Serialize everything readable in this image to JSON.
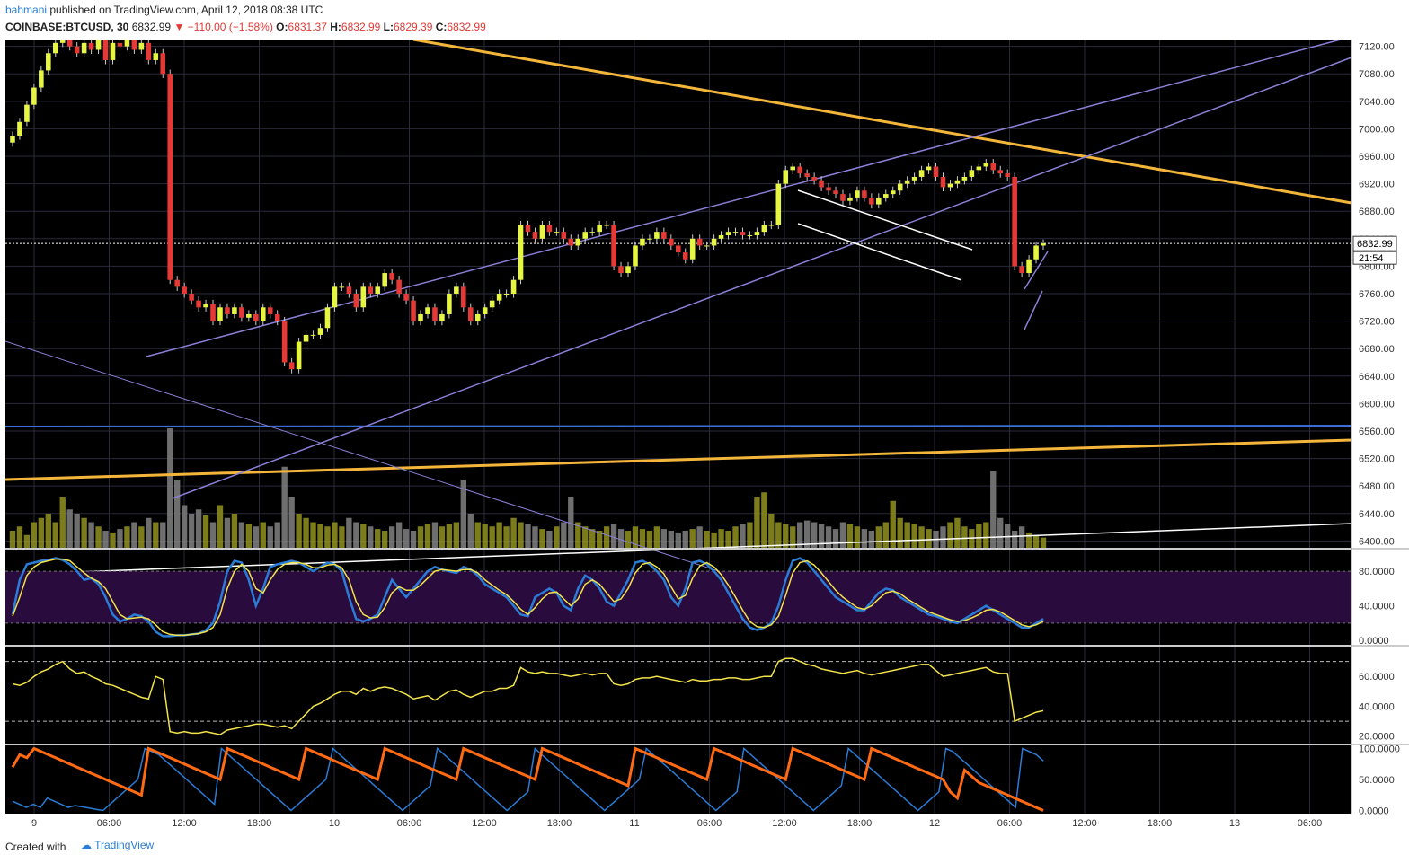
{
  "header": {
    "author": "bahmani",
    "published": "published on TradingView.com, April 12, 2018 08:38 UTC",
    "symbol": "COINBASE:BTCUSD, 30",
    "last": "6832.99",
    "change": "▼ −110.00 (−1.58%)",
    "open_label": "O:",
    "open": "6831.37",
    "high_label": "H:",
    "high": "6832.99",
    "low_label": "L:",
    "low": "6829.39",
    "close_label": "C:",
    "close": "6832.99"
  },
  "footer": {
    "created_with": "Created with",
    "brand": "TradingView"
  },
  "price_tag": {
    "value": "6832.99",
    "timer": "21:54"
  },
  "colors": {
    "background": "#000000",
    "grid": "#2a2a3a",
    "up": "#e6f542",
    "down": "#e53935",
    "channel": "#8a7fd6",
    "gold": "#f4b63a",
    "support": "#3b6fd6",
    "stoch_k": "#2a7cd6",
    "stoch_d": "#f2e34b",
    "rsi": "#f2e34b",
    "aroon_up": "#2a7cd6",
    "aroon_down": "#ff6a13"
  },
  "chart_data": {
    "type": "candlestick",
    "price_axis": [
      "7120.00",
      "7080.00",
      "7040.00",
      "7000.00",
      "6960.00",
      "6920.00",
      "6880.00",
      "6840.00",
      "6800.00",
      "6760.00",
      "6720.00",
      "6680.00",
      "6640.00",
      "6600.00",
      "6560.00",
      "6520.00",
      "6480.00",
      "6440.00",
      "6400.00"
    ],
    "ylim": [
      6390,
      7130
    ],
    "x_ticks": [
      "9",
      "06:00",
      "12:00",
      "18:00",
      "10",
      "06:00",
      "12:00",
      "18:00",
      "11",
      "06:00",
      "12:00",
      "18:00",
      "12",
      "06:00",
      "12:00",
      "18:00",
      "13",
      "06:00"
    ],
    "stoch_axis": [
      "80.0000",
      "40.0000",
      "0.0000"
    ],
    "rsi_axis": [
      "60.0000",
      "40.0000",
      "20.0000"
    ],
    "aroon_axis": [
      "100.0000",
      "50.0000",
      "0.0000"
    ],
    "candles_close": [
      6990,
      7010,
      7035,
      7060,
      7085,
      7110,
      7125,
      7130,
      7120,
      7110,
      7125,
      7115,
      7130,
      7100,
      7125,
      7120,
      7130,
      7115,
      7125,
      7100,
      7110,
      7080,
      6780,
      6770,
      6760,
      6750,
      6740,
      6745,
      6720,
      6740,
      6730,
      6740,
      6725,
      6730,
      6720,
      6740,
      6730,
      6720,
      6660,
      6650,
      6690,
      6700,
      6700,
      6710,
      6740,
      6770,
      6770,
      6760,
      6740,
      6770,
      6760,
      6770,
      6790,
      6780,
      6760,
      6750,
      6720,
      6730,
      6740,
      6720,
      6730,
      6760,
      6770,
      6740,
      6720,
      6730,
      6740,
      6750,
      6760,
      6760,
      6780,
      6860,
      6850,
      6840,
      6860,
      6850,
      6850,
      6840,
      6830,
      6840,
      6850,
      6850,
      6860,
      6860,
      6800,
      6790,
      6800,
      6830,
      6840,
      6840,
      6850,
      6840,
      6830,
      6820,
      6810,
      6840,
      6830,
      6830,
      6840,
      6845,
      6850,
      6850,
      6845,
      6845,
      6850,
      6860,
      6860,
      6920,
      6940,
      6945,
      6935,
      6930,
      6925,
      6915,
      6910,
      6905,
      6895,
      6900,
      6910,
      6900,
      6890,
      6900,
      6905,
      6910,
      6920,
      6925,
      6930,
      6940,
      6945,
      6930,
      6915,
      6920,
      6925,
      6930,
      6940,
      6945,
      6950,
      6940,
      6935,
      6930,
      6800,
      6790,
      6810,
      6830,
      6833
    ],
    "volume": [
      20,
      25,
      15,
      30,
      35,
      40,
      30,
      60,
      45,
      40,
      35,
      30,
      25,
      20,
      18,
      22,
      25,
      30,
      25,
      35,
      30,
      30,
      140,
      80,
      50,
      40,
      45,
      38,
      30,
      50,
      35,
      40,
      30,
      28,
      25,
      30,
      25,
      30,
      95,
      60,
      40,
      35,
      30,
      28,
      25,
      30,
      25,
      35,
      30,
      28,
      25,
      22,
      20,
      25,
      30,
      22,
      20,
      25,
      28,
      30,
      25,
      28,
      30,
      80,
      40,
      30,
      28,
      25,
      30,
      25,
      35,
      30,
      28,
      25,
      22,
      20,
      25,
      30,
      60,
      30,
      25,
      22,
      20,
      25,
      28,
      22,
      20,
      25,
      22,
      20,
      25,
      22,
      20,
      18,
      20,
      22,
      25,
      20,
      18,
      22,
      20,
      25,
      28,
      30,
      60,
      65,
      40,
      30,
      28,
      25,
      30,
      32,
      30,
      28,
      25,
      22,
      30,
      28,
      25,
      22,
      20,
      25,
      30,
      55,
      35,
      30,
      28,
      25,
      22,
      20,
      25,
      30,
      35,
      25,
      22,
      28,
      30,
      90,
      35,
      28,
      20,
      25,
      18,
      15,
      12
    ],
    "stoch_k": [
      30,
      70,
      88,
      90,
      92,
      93,
      95,
      93,
      88,
      80,
      70,
      72,
      65,
      50,
      30,
      22,
      25,
      30,
      28,
      22,
      10,
      5,
      5,
      6,
      6,
      7,
      8,
      12,
      20,
      45,
      80,
      92,
      90,
      70,
      40,
      60,
      85,
      88,
      90,
      92,
      90,
      85,
      80,
      85,
      90,
      88,
      80,
      50,
      25,
      22,
      25,
      30,
      50,
      70,
      60,
      50,
      60,
      70,
      80,
      85,
      82,
      80,
      78,
      85,
      82,
      75,
      65,
      60,
      55,
      50,
      40,
      30,
      28,
      50,
      55,
      60,
      55,
      40,
      35,
      60,
      75,
      70,
      60,
      45,
      40,
      55,
      70,
      90,
      92,
      88,
      80,
      70,
      50,
      40,
      60,
      90,
      92,
      88,
      80,
      70,
      55,
      40,
      25,
      15,
      12,
      15,
      20,
      40,
      70,
      92,
      95,
      90,
      80,
      70,
      60,
      50,
      45,
      40,
      35,
      35,
      45,
      55,
      60,
      58,
      50,
      45,
      40,
      35,
      30,
      28,
      25,
      22,
      20,
      25,
      30,
      35,
      40,
      35,
      30,
      25,
      20,
      15,
      15,
      20,
      25
    ],
    "stoch_d": [
      28,
      50,
      75,
      85,
      90,
      92,
      94,
      94,
      92,
      85,
      78,
      72,
      68,
      60,
      45,
      30,
      25,
      26,
      27,
      25,
      18,
      10,
      7,
      6,
      6,
      7,
      8,
      10,
      15,
      30,
      60,
      80,
      88,
      80,
      60,
      55,
      70,
      82,
      88,
      90,
      90,
      88,
      84,
      84,
      87,
      88,
      84,
      70,
      45,
      30,
      26,
      27,
      38,
      55,
      62,
      58,
      58,
      64,
      72,
      80,
      82,
      81,
      80,
      82,
      82,
      78,
      70,
      64,
      58,
      53,
      45,
      36,
      30,
      38,
      48,
      55,
      56,
      48,
      40,
      48,
      65,
      70,
      65,
      55,
      45,
      48,
      60,
      78,
      88,
      90,
      85,
      77,
      62,
      48,
      52,
      72,
      86,
      90,
      85,
      76,
      64,
      50,
      35,
      22,
      16,
      15,
      18,
      28,
      52,
      78,
      90,
      92,
      87,
      78,
      68,
      58,
      50,
      44,
      38,
      36,
      40,
      48,
      55,
      57,
      54,
      48,
      43,
      38,
      33,
      30,
      27,
      24,
      22,
      23,
      26,
      30,
      35,
      36,
      33,
      28,
      23,
      18,
      16,
      18,
      22
    ],
    "rsi": [
      55,
      54,
      56,
      60,
      63,
      65,
      68,
      70,
      65,
      62,
      63,
      60,
      58,
      55,
      54,
      52,
      50,
      48,
      46,
      45,
      60,
      58,
      23,
      22,
      23,
      22,
      22,
      23,
      22,
      21,
      24,
      25,
      26,
      27,
      28,
      28,
      27,
      26,
      27,
      25,
      30,
      35,
      40,
      42,
      45,
      48,
      50,
      50,
      48,
      52,
      50,
      52,
      53,
      52,
      50,
      48,
      45,
      46,
      47,
      44,
      47,
      50,
      51,
      48,
      46,
      48,
      50,
      50,
      52,
      52,
      54,
      66,
      63,
      62,
      63,
      62,
      62,
      61,
      60,
      61,
      62,
      61,
      62,
      62,
      55,
      54,
      55,
      58,
      59,
      59,
      60,
      59,
      58,
      57,
      56,
      58,
      57,
      57,
      58,
      58,
      59,
      59,
      58,
      58,
      59,
      60,
      60,
      70,
      72,
      72,
      70,
      68,
      67,
      65,
      64,
      63,
      62,
      63,
      64,
      62,
      61,
      62,
      63,
      64,
      65,
      66,
      67,
      68,
      68,
      64,
      60,
      61,
      62,
      63,
      64,
      65,
      66,
      63,
      62,
      62,
      30,
      32,
      34,
      36,
      37
    ],
    "aroon_up": [
      15,
      10,
      5,
      10,
      5,
      20,
      15,
      10,
      5,
      8,
      6,
      4,
      2,
      0,
      10,
      20,
      30,
      40,
      50,
      100,
      95,
      90,
      80,
      70,
      60,
      50,
      40,
      30,
      20,
      10,
      100,
      90,
      80,
      70,
      60,
      50,
      40,
      30,
      20,
      10,
      0,
      10,
      20,
      30,
      40,
      50,
      100,
      90,
      80,
      70,
      60,
      50,
      40,
      30,
      20,
      10,
      0,
      10,
      20,
      30,
      40,
      100,
      90,
      80,
      70,
      60,
      50,
      40,
      30,
      20,
      10,
      0,
      10,
      20,
      30,
      100,
      90,
      80,
      70,
      60,
      50,
      40,
      30,
      20,
      10,
      0,
      10,
      20,
      30,
      40,
      50,
      100,
      90,
      80,
      70,
      60,
      50,
      40,
      30,
      20,
      10,
      0,
      10,
      20,
      30,
      100,
      90,
      80,
      70,
      60,
      50,
      40,
      30,
      20,
      10,
      0,
      10,
      20,
      30,
      40,
      100,
      90,
      80,
      70,
      60,
      50,
      40,
      30,
      20,
      10,
      0,
      10,
      20,
      30,
      100,
      95,
      85,
      75,
      65,
      55,
      45,
      35,
      25,
      15,
      5,
      100,
      95,
      90,
      80
    ],
    "aroon_down": [
      70,
      90,
      85,
      100,
      95,
      90,
      85,
      80,
      75,
      70,
      65,
      60,
      55,
      50,
      45,
      40,
      35,
      30,
      25,
      100,
      95,
      90,
      85,
      80,
      75,
      70,
      65,
      60,
      55,
      50,
      100,
      95,
      90,
      85,
      80,
      75,
      70,
      65,
      60,
      55,
      50,
      100,
      95,
      90,
      85,
      80,
      75,
      70,
      65,
      60,
      55,
      50,
      100,
      95,
      90,
      85,
      80,
      75,
      70,
      65,
      60,
      55,
      50,
      100,
      95,
      90,
      85,
      80,
      75,
      70,
      65,
      60,
      55,
      50,
      100,
      95,
      90,
      85,
      80,
      75,
      70,
      65,
      60,
      55,
      50,
      45,
      40,
      100,
      95,
      90,
      85,
      80,
      75,
      70,
      65,
      60,
      55,
      50,
      100,
      95,
      90,
      85,
      80,
      75,
      70,
      65,
      60,
      55,
      50,
      100,
      95,
      90,
      85,
      80,
      75,
      70,
      65,
      60,
      55,
      50,
      100,
      95,
      90,
      85,
      80,
      75,
      70,
      65,
      60,
      55,
      50,
      30,
      20,
      65,
      55,
      45,
      40,
      35,
      30,
      25,
      20,
      15,
      10,
      5,
      0
    ]
  }
}
